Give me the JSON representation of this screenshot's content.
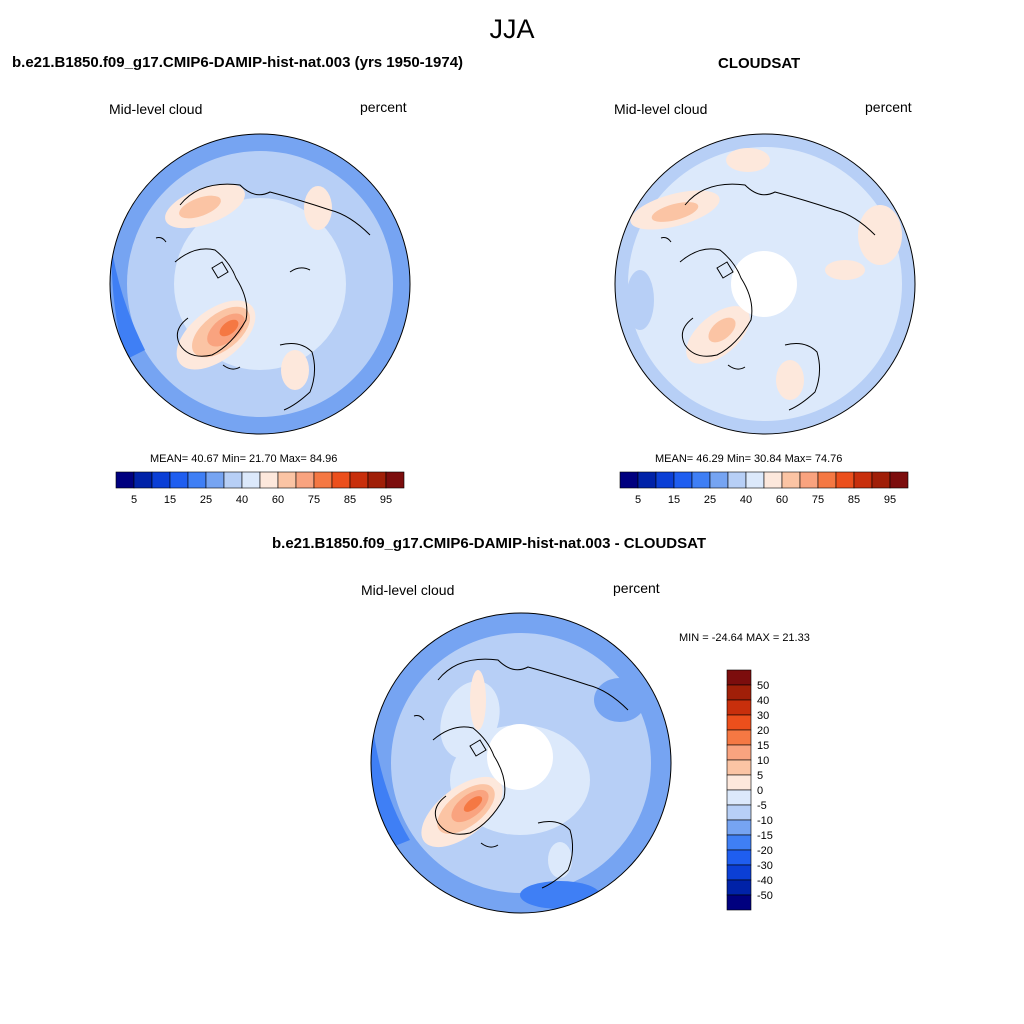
{
  "title": "JJA",
  "palette": {
    "levels": [
      "#00007f",
      "#0022a8",
      "#0b3fd6",
      "#1f5ef0",
      "#3f7ff5",
      "#76a4f2",
      "#b7cff6",
      "#dce9fb",
      "#fde8dc",
      "#fbc4a4",
      "#f9a37f",
      "#f57843",
      "#ec4f1c",
      "#c82f0c",
      "#a01f08",
      "#7c0d0d"
    ]
  },
  "panels": {
    "model": {
      "title": "b.e21.B1850.f09_g17.CMIP6-DAMIP-hist-nat.003 (yrs 1950-1974)",
      "variable": "Mid-level cloud",
      "units": "percent",
      "stats_text": "MEAN=  40.67  Min=  21.70  Max=  84.96"
    },
    "obs": {
      "title": "CLOUDSAT",
      "variable": "Mid-level cloud",
      "units": "percent",
      "stats_text": "MEAN=  46.29  Min=  30.84  Max=  74.76"
    },
    "diff": {
      "title": "b.e21.B1850.f09_g17.CMIP6-DAMIP-hist-nat.003 - CLOUDSAT",
      "variable": "Mid-level cloud",
      "units": "percent",
      "stats_text": "MIN = -24.64 MAX =  21.33"
    }
  },
  "colorbar_abs": {
    "tick_labels": [
      "5",
      "15",
      "25",
      "40",
      "60",
      "75",
      "85",
      "95"
    ]
  },
  "colorbar_diff": {
    "tick_labels": [
      "50",
      "40",
      "30",
      "20",
      "15",
      "10",
      "5",
      "0",
      "-5",
      "-10",
      "-15",
      "-20",
      "-30",
      "-40",
      "-50"
    ]
  }
}
